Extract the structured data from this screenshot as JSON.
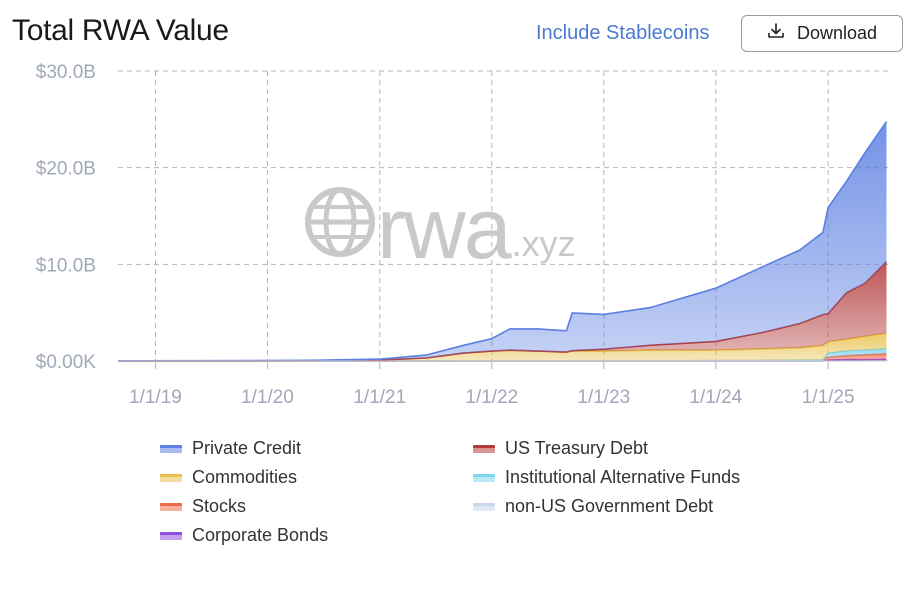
{
  "header": {
    "title": "Total RWA Value",
    "toggle_label": "Include Stablecoins",
    "download_label": "Download"
  },
  "watermark": {
    "main": "rwa",
    "suffix": ".xyz"
  },
  "chart_data": {
    "type": "area",
    "stacked": true,
    "y_tick_labels": [
      "$0.00K",
      "$10.0B",
      "$20.0B",
      "$30.0B"
    ],
    "y_ticks": [
      0,
      10,
      20,
      30
    ],
    "y_unit": "B USD",
    "ylim": [
      0,
      30
    ],
    "x_tick_labels": [
      "1/1/19",
      "1/1/20",
      "1/1/21",
      "1/1/22",
      "1/1/23",
      "1/1/24",
      "1/1/25"
    ],
    "x_ticks": [
      "2019-01-01",
      "2020-01-01",
      "2021-01-01",
      "2022-01-01",
      "2023-01-01",
      "2024-01-01",
      "2025-01-01"
    ],
    "xlim": [
      "2018-09-01",
      "2025-07-15"
    ],
    "grid": true,
    "legend_placement": "bottom",
    "x": [
      "2018-09-01",
      "2019-06-01",
      "2020-06-01",
      "2021-01-01",
      "2021-06-01",
      "2021-10-01",
      "2022-01-01",
      "2022-03-01",
      "2022-06-01",
      "2022-09-01",
      "2022-09-20",
      "2023-01-01",
      "2023-06-01",
      "2024-01-01",
      "2024-06-01",
      "2024-10-01",
      "2024-12-15",
      "2025-01-01",
      "2025-03-01",
      "2025-05-01",
      "2025-07-10"
    ],
    "series": [
      {
        "name": "non-US Government Debt",
        "color": "#c9d6ec",
        "values": [
          0,
          0,
          0,
          0,
          0,
          0,
          0,
          0,
          0,
          0,
          0,
          0,
          0,
          0,
          0,
          0,
          0,
          0.05,
          0.1,
          0.1,
          0.12
        ]
      },
      {
        "name": "Corporate Bonds",
        "color": "#8e4de0",
        "values": [
          0,
          0,
          0,
          0,
          0,
          0,
          0,
          0,
          0,
          0,
          0,
          0,
          0,
          0,
          0,
          0,
          0,
          0.05,
          0.05,
          0.05,
          0.05
        ]
      },
      {
        "name": "Stocks",
        "color": "#ee6a47",
        "values": [
          0,
          0,
          0,
          0,
          0.01,
          0.02,
          0.02,
          0.02,
          0.02,
          0.02,
          0.02,
          0.02,
          0.02,
          0.03,
          0.05,
          0.08,
          0.1,
          0.3,
          0.4,
          0.5,
          0.6
        ]
      },
      {
        "name": "Institutional Alternative Funds",
        "color": "#7fd3ec",
        "values": [
          0,
          0,
          0,
          0,
          0,
          0,
          0,
          0,
          0,
          0,
          0,
          0,
          0,
          0,
          0,
          0,
          0,
          0.4,
          0.5,
          0.5,
          0.5
        ]
      },
      {
        "name": "Commodities",
        "color": "#e8c04a",
        "values": [
          0,
          0,
          0.02,
          0.1,
          0.3,
          0.8,
          1.0,
          1.1,
          1.0,
          0.9,
          1.0,
          1.0,
          1.1,
          1.1,
          1.2,
          1.3,
          1.5,
          1.2,
          1.2,
          1.4,
          1.6
        ]
      },
      {
        "name": "US Treasury Debt",
        "color": "#b23a3a",
        "values": [
          0,
          0,
          0,
          0,
          0,
          0,
          0,
          0,
          0,
          0,
          0.05,
          0.2,
          0.5,
          0.9,
          1.7,
          2.5,
          3.2,
          2.9,
          4.8,
          5.5,
          7.4
        ]
      },
      {
        "name": "Private Credit",
        "color": "#5b7fe2",
        "values": [
          0.02,
          0.03,
          0.05,
          0.1,
          0.3,
          0.8,
          1.3,
          2.2,
          2.3,
          2.2,
          3.9,
          3.6,
          3.9,
          5.5,
          6.8,
          7.6,
          8.5,
          11.0,
          11.5,
          13.5,
          14.5
        ]
      }
    ],
    "legend": [
      "Private Credit",
      "US Treasury Debt",
      "Commodities",
      "Institutional Alternative Funds",
      "Stocks",
      "non-US Government Debt",
      "Corporate Bonds"
    ]
  }
}
